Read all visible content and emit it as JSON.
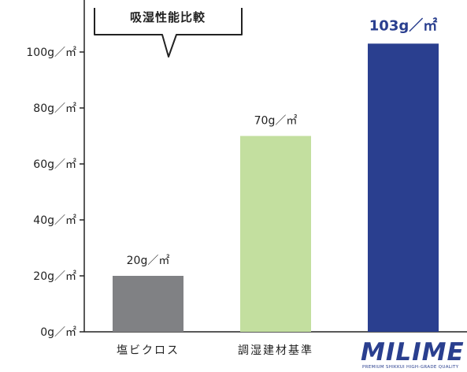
{
  "chart_data": {
    "type": "bar",
    "title": "吸湿性能比較",
    "unit": "g／㎡",
    "categories": [
      "塩ビクロス",
      "調湿建材基準",
      "MILIME"
    ],
    "values": [
      20,
      70,
      103
    ],
    "value_labels": [
      "20g／㎡",
      "70g／㎡",
      "103g／㎡"
    ],
    "y_ticks": [
      "0g／㎡",
      "20g／㎡",
      "40g／㎡",
      "60g／㎡",
      "80g／㎡",
      "100g／㎡"
    ],
    "ylim": [
      0,
      110
    ],
    "grid": false,
    "colors": [
      "#808184",
      "#c3df9f",
      "#2a3f8f"
    ],
    "logo": {
      "text": "MILIME",
      "subtitle": "PREMIUM SHIKKUI HIGH-GRADE QUALITY"
    }
  }
}
